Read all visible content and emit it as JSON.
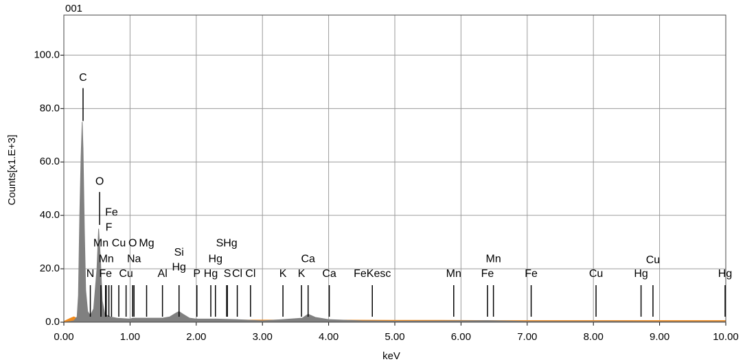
{
  "chart_data": {
    "type": "area",
    "title": "001",
    "y_label": "Counts[x1.E+3]",
    "x_label": "keV",
    "xlim": [
      0,
      10
    ],
    "ylim": [
      0,
      115
    ],
    "grid": true,
    "xticks": [
      {
        "value": 0,
        "label": "0.00"
      },
      {
        "value": 1,
        "label": "1.00"
      },
      {
        "value": 2,
        "label": "2.00"
      },
      {
        "value": 3,
        "label": "3.00"
      },
      {
        "value": 4,
        "label": "4.00"
      },
      {
        "value": 5,
        "label": "5.00"
      },
      {
        "value": 6,
        "label": "6.00"
      },
      {
        "value": 7,
        "label": "7.00"
      },
      {
        "value": 8,
        "label": "8.00"
      },
      {
        "value": 9,
        "label": "9.00"
      },
      {
        "value": 10,
        "label": "10.00"
      }
    ],
    "yticks": [
      {
        "value": 0,
        "label": "0.0"
      },
      {
        "value": 20,
        "label": "20.0"
      },
      {
        "value": 40,
        "label": "40.0"
      },
      {
        "value": 60,
        "label": "60.0"
      },
      {
        "value": 80,
        "label": "80.0"
      },
      {
        "value": 100,
        "label": "100.0"
      }
    ],
    "series": [
      {
        "color": "#f08a1c",
        "x": [
          0,
          0.1,
          0.15,
          0.2,
          0.8,
          1.1,
          2.0,
          3.0,
          4.0,
          5.0,
          5.7,
          6.5,
          7.0,
          8.0,
          8.8,
          9.5,
          10
        ],
        "values": [
          0.3,
          1.5,
          2,
          1.5,
          1.0,
          0.9,
          0.8,
          0.8,
          0.8,
          0.7,
          0.7,
          0.6,
          0.6,
          0.6,
          0.6,
          0.6,
          0.6
        ]
      },
      {
        "color": "#808080",
        "x": [
          0,
          0.1,
          0.15,
          0.2,
          0.22,
          0.24,
          0.26,
          0.277,
          0.29,
          0.31,
          0.33,
          0.36,
          0.4,
          0.45,
          0.5,
          0.525,
          0.55,
          0.58,
          0.62,
          0.7,
          0.8,
          1.0,
          1.04,
          1.25,
          1.49,
          1.6,
          1.7,
          1.74,
          1.8,
          1.9,
          2.0,
          2.3,
          2.6,
          3.0,
          3.31,
          3.6,
          3.69,
          3.8,
          4.0,
          4.5,
          5.0,
          6.0,
          6.4,
          7.0,
          8.0,
          9.0,
          10
        ],
        "values": [
          0,
          0.3,
          0.5,
          2,
          10,
          40,
          62,
          75,
          65,
          35,
          12,
          4,
          2.5,
          5,
          20,
          35,
          25,
          8,
          3,
          2,
          1.5,
          1.2,
          1.5,
          1.5,
          1.5,
          2,
          3.5,
          4,
          3,
          1.5,
          1.2,
          1.2,
          1.0,
          0.5,
          1.0,
          1.5,
          3,
          1.8,
          1.0,
          0.5,
          0.4,
          0.5,
          0.6,
          0.3,
          0.3,
          0.2,
          0.2
        ]
      }
    ],
    "annotations": [
      {
        "label": "C",
        "x": 0.29,
        "y": 91.5
      },
      {
        "label": "O",
        "x": 0.54,
        "y": 52.6
      },
      {
        "label": "Fe",
        "x": 0.72,
        "y": 41
      },
      {
        "label": "F",
        "x": 0.68,
        "y": 35.4
      },
      {
        "label": "Mn",
        "x": 0.56,
        "y": 29.5
      },
      {
        "label": "Cu",
        "x": 0.83,
        "y": 29.5
      },
      {
        "label": "O",
        "x": 1.04,
        "y": 29.5
      },
      {
        "label": "Mg",
        "x": 1.25,
        "y": 29.5
      },
      {
        "label": "Mn",
        "x": 0.64,
        "y": 23.6
      },
      {
        "label": "Na",
        "x": 1.06,
        "y": 23.6
      },
      {
        "label": "N",
        "x": 0.4,
        "y": 18
      },
      {
        "label": "Fe",
        "x": 0.63,
        "y": 18
      },
      {
        "label": "Cu",
        "x": 0.94,
        "y": 18
      },
      {
        "label": "Al",
        "x": 1.49,
        "y": 18
      },
      {
        "label": "Si",
        "x": 1.74,
        "y": 26
      },
      {
        "label": "Hg",
        "x": 1.74,
        "y": 20.5
      },
      {
        "label": "P",
        "x": 2.01,
        "y": 18
      },
      {
        "label": "Hg",
        "x": 2.22,
        "y": 18
      },
      {
        "label": "Hg",
        "x": 2.29,
        "y": 23.6
      },
      {
        "label": "SHg",
        "x": 2.46,
        "y": 29.5
      },
      {
        "label": "S",
        "x": 2.47,
        "y": 18
      },
      {
        "label": "Cl",
        "x": 2.62,
        "y": 18
      },
      {
        "label": "Cl",
        "x": 2.82,
        "y": 18
      },
      {
        "label": "K",
        "x": 3.31,
        "y": 18
      },
      {
        "label": "K",
        "x": 3.59,
        "y": 18
      },
      {
        "label": "Ca",
        "x": 3.69,
        "y": 23.6
      },
      {
        "label": "Ca",
        "x": 4.01,
        "y": 18
      },
      {
        "label": "FeKesc",
        "x": 4.66,
        "y": 18
      },
      {
        "label": "Mn",
        "x": 5.89,
        "y": 18
      },
      {
        "label": "Fe",
        "x": 6.4,
        "y": 18
      },
      {
        "label": "Mn",
        "x": 6.49,
        "y": 23.6
      },
      {
        "label": "Fe",
        "x": 7.06,
        "y": 18
      },
      {
        "label": "Cu",
        "x": 8.04,
        "y": 18
      },
      {
        "label": "Hg",
        "x": 8.72,
        "y": 18
      },
      {
        "label": "Cu",
        "x": 8.9,
        "y": 23.1
      },
      {
        "label": "Hg",
        "x": 9.99,
        "y": 18
      }
    ]
  }
}
